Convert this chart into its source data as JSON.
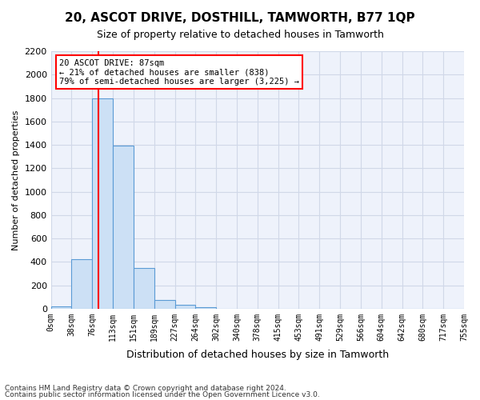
{
  "title": "20, ASCOT DRIVE, DOSTHILL, TAMWORTH, B77 1QP",
  "subtitle": "Size of property relative to detached houses in Tamworth",
  "xlabel": "Distribution of detached houses by size in Tamworth",
  "ylabel": "Number of detached properties",
  "footer1": "Contains HM Land Registry data © Crown copyright and database right 2024.",
  "footer2": "Contains public sector information licensed under the Open Government Licence v3.0.",
  "bin_labels": [
    "0sqm",
    "38sqm",
    "76sqm",
    "113sqm",
    "151sqm",
    "189sqm",
    "227sqm",
    "264sqm",
    "302sqm",
    "340sqm",
    "378sqm",
    "415sqm",
    "453sqm",
    "491sqm",
    "529sqm",
    "566sqm",
    "604sqm",
    "642sqm",
    "680sqm",
    "717sqm",
    "755sqm"
  ],
  "bar_values": [
    20,
    420,
    1800,
    1390,
    350,
    75,
    30,
    15,
    0,
    0,
    0,
    0,
    0,
    0,
    0,
    0,
    0,
    0,
    0,
    0
  ],
  "bar_color": "#cce0f5",
  "bar_edge_color": "#5b9bd5",
  "grid_color": "#d0d8e8",
  "bg_color": "#eef2fb",
  "red_line_x": 2,
  "annotation_text": "20 ASCOT DRIVE: 87sqm\n← 21% of detached houses are smaller (838)\n79% of semi-detached houses are larger (3,225) →",
  "annotation_box_color": "white",
  "annotation_box_edge": "red",
  "ylim": [
    0,
    2200
  ],
  "yticks": [
    0,
    200,
    400,
    600,
    800,
    1000,
    1200,
    1400,
    1600,
    1800,
    2000,
    2200
  ]
}
